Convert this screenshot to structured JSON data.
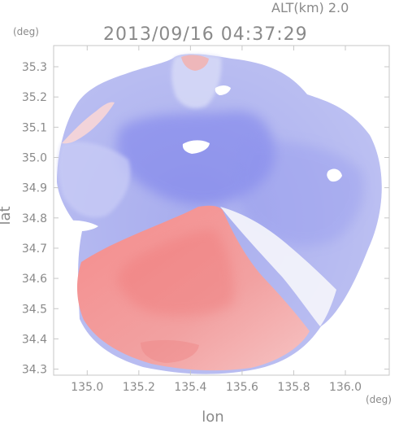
{
  "chart_data": {
    "type": "heatmap",
    "title": "2013/09/16 04:37:29",
    "altitude_label": "ALT(km) 2.0",
    "xlabel": "lon",
    "ylabel": "lat",
    "x_unit": "(deg)",
    "y_unit": "(deg)",
    "xlim": [
      134.87,
      136.17
    ],
    "ylim": [
      34.28,
      35.37
    ],
    "xticks": [
      "135.0",
      "135.2",
      "135.4",
      "135.6",
      "135.8",
      "136.0"
    ],
    "yticks": [
      "34.3",
      "34.4",
      "34.5",
      "34.6",
      "34.7",
      "34.8",
      "34.9",
      "35.0",
      "35.1",
      "35.2",
      "35.3"
    ],
    "grid": false,
    "colormap": {
      "negative": "#7b7de8",
      "zero": "#f2f2fb",
      "positive": "#f07a7a"
    }
  }
}
